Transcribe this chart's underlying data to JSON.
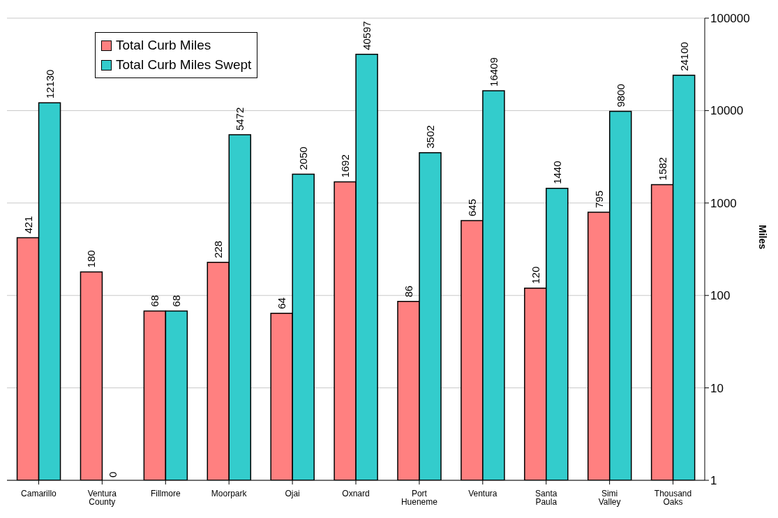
{
  "chart_data": {
    "type": "bar",
    "ylabel": "Miles",
    "categories": [
      "Camarillo",
      "Ventura County",
      "Fillmore",
      "Moorpark",
      "Ojai",
      "Oxnard",
      "Port Hueneme",
      "Ventura",
      "Santa Paula",
      "Simi Valley",
      "Thousand Oaks"
    ],
    "series": [
      {
        "name": "Total Curb Miles",
        "color": "#ff8080",
        "values": [
          421,
          180,
          68,
          228,
          64,
          1692,
          86,
          645,
          120,
          795,
          1582
        ],
        "value_labels": [
          "421",
          "180",
          "68",
          "228",
          "64",
          "1692",
          "86",
          "645",
          "120",
          "795",
          "1582"
        ]
      },
      {
        "name": "Total Curb Miles Swept",
        "color": "#33cccc",
        "values": [
          12130,
          null,
          68,
          5472,
          2050,
          40597,
          3502,
          16409,
          1440,
          9800,
          24100
        ],
        "value_labels": [
          "12130",
          "0",
          "68",
          "5472",
          "2050",
          "40597",
          "3502",
          "16409",
          "1440",
          "9800",
          "24100"
        ]
      }
    ],
    "log": true,
    "ylim": [
      1,
      100000
    ],
    "yticks": [
      1,
      10,
      100,
      1000,
      10000,
      100000
    ],
    "grid": "y",
    "legend": "top left"
  }
}
